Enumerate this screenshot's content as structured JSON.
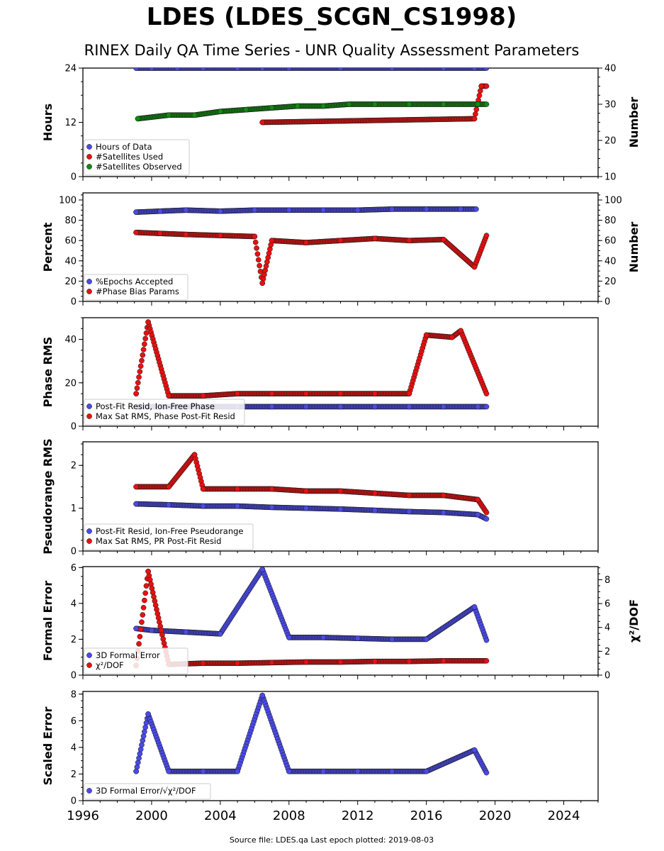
{
  "title": "LDES (LDES_SCGN_CS1998)",
  "subtitle": "RINEX Daily QA Time Series - UNR Quality Assessment Parameters",
  "footer": "Source file: LDES.qa Last epoch plotted: 2019-08-03",
  "colors": {
    "blue": "#4a4ae8",
    "red": "#e81010",
    "green": "#108a10",
    "edge": "#1a1a1a"
  },
  "chart_data": [
    {
      "type": "scatter",
      "x_axis": {
        "range": [
          1996,
          2026
        ],
        "ticks": [
          1996,
          2000,
          2004,
          2008,
          2012,
          2016,
          2020,
          2024
        ]
      },
      "ylabel": "Hours",
      "ylim": [
        0,
        24
      ],
      "yticks": [
        0,
        12,
        24
      ],
      "y2label": "Number",
      "y2lim": [
        10,
        40
      ],
      "y2ticks": [
        10,
        20,
        30,
        40
      ],
      "legend_position": "lower-left",
      "series": [
        {
          "name": "Hours of Data",
          "axis": "left",
          "color": "blue",
          "x": [
            1999.1,
            2000.0,
            2001.5,
            2003.0,
            2005.0,
            2006.45,
            2008.0,
            2011.0,
            2014.0,
            2017.0,
            2018.8,
            2019.5
          ],
          "y": [
            24,
            24,
            24,
            24,
            24,
            24,
            24,
            24,
            24,
            24,
            24,
            24
          ]
        },
        {
          "name": "#Satellites Used",
          "axis": "right",
          "color": "red",
          "x": [
            2006.45,
            2018.8,
            2019.2,
            2019.5
          ],
          "y": [
            25,
            26,
            35,
            35
          ]
        },
        {
          "name": "#Satellites Observed",
          "axis": "right",
          "color": "green",
          "x": [
            1999.2,
            2001.0,
            2002.5,
            2004.0,
            2005.5,
            2007.0,
            2008.5,
            2010.0,
            2011.5,
            2013.0,
            2015.0,
            2017.0,
            2019.0,
            2019.5
          ],
          "y": [
            26,
            27,
            27,
            28,
            28.5,
            29,
            29.5,
            29.5,
            30,
            30,
            30,
            30,
            30,
            30
          ]
        }
      ]
    },
    {
      "type": "scatter",
      "x_axis": {
        "range": [
          1996,
          2026
        ],
        "ticks": [
          1996,
          2000,
          2004,
          2008,
          2012,
          2016,
          2020,
          2024
        ]
      },
      "ylabel": "Percent",
      "ylim": [
        0,
        107
      ],
      "yticks": [
        0,
        20,
        40,
        60,
        80,
        100
      ],
      "y2label": "Number",
      "y2lim": [
        0,
        107
      ],
      "y2ticks": [
        0,
        20,
        40,
        60,
        80,
        100
      ],
      "legend_position": "lower-left",
      "series": [
        {
          "name": "%Epochs Accepted",
          "axis": "left",
          "color": "blue",
          "x": [
            1999.1,
            2000.5,
            2002.0,
            2004.0,
            2006.0,
            2008.0,
            2010.0,
            2012.0,
            2014.0,
            2016.0,
            2018.0,
            2018.9
          ],
          "y": [
            88,
            89,
            90,
            89,
            90,
            90,
            90,
            90,
            91,
            91,
            91,
            91
          ]
        },
        {
          "name": "#Phase Bias Params",
          "axis": "right",
          "color": "red",
          "x": [
            1999.1,
            2000.5,
            2002.0,
            2004.0,
            2006.0,
            2006.45,
            2007.0,
            2009.0,
            2011.0,
            2013.0,
            2015.0,
            2017.0,
            2018.8,
            2019.5
          ],
          "y": [
            68,
            67,
            66,
            65,
            64,
            18,
            60,
            58,
            60,
            62,
            60,
            61,
            34,
            65
          ]
        }
      ]
    },
    {
      "type": "scatter",
      "x_axis": {
        "range": [
          1996,
          2026
        ],
        "ticks": [
          1996,
          2000,
          2004,
          2008,
          2012,
          2016,
          2020,
          2024
        ]
      },
      "ylabel": "Phase RMS",
      "ylim": [
        0,
        50
      ],
      "yticks": [
        0,
        20,
        40
      ],
      "legend_position": "lower-left",
      "series": [
        {
          "name": "Post-Fit Resid, Ion-Free Phase",
          "axis": "left",
          "color": "blue",
          "x": [
            1999.1,
            2001.0,
            2003.0,
            2005.0,
            2007.0,
            2009.0,
            2011.0,
            2013.0,
            2015.0,
            2017.0,
            2019.0,
            2019.5
          ],
          "y": [
            9,
            9,
            9,
            9,
            9,
            9,
            9,
            9,
            9,
            9,
            9,
            9
          ]
        },
        {
          "name": "Max Sat RMS, Phase Post-Fit Resid",
          "axis": "left",
          "color": "red",
          "x": [
            1999.1,
            1999.8,
            2001.0,
            2003.0,
            2005.0,
            2007.0,
            2009.0,
            2011.0,
            2013.0,
            2015.0,
            2016.0,
            2017.5,
            2018.0,
            2019.5
          ],
          "y": [
            15,
            48,
            14,
            14,
            15,
            15,
            15,
            15,
            15,
            15,
            42,
            41,
            44,
            15
          ]
        }
      ]
    },
    {
      "type": "scatter",
      "x_axis": {
        "range": [
          1996,
          2026
        ],
        "ticks": [
          1996,
          2000,
          2004,
          2008,
          2012,
          2016,
          2020,
          2024
        ]
      },
      "ylabel": "Pseudorange RMS",
      "ylim": [
        0,
        2.55
      ],
      "yticks": [
        0,
        1,
        2
      ],
      "legend_position": "lower-left",
      "series": [
        {
          "name": "Post-Fit Resid, Ion-Free Pseudorange",
          "axis": "left",
          "color": "blue",
          "x": [
            1999.1,
            2001.0,
            2003.0,
            2005.0,
            2007.0,
            2009.0,
            2011.0,
            2013.0,
            2015.0,
            2017.0,
            2019.0,
            2019.5
          ],
          "y": [
            1.1,
            1.08,
            1.05,
            1.05,
            1.02,
            1.0,
            0.98,
            0.95,
            0.92,
            0.9,
            0.85,
            0.75
          ]
        },
        {
          "name": "Max Sat RMS, PR Post-Fit Resid",
          "axis": "left",
          "color": "red",
          "x": [
            1999.1,
            2001.0,
            2002.5,
            2003.0,
            2005.0,
            2007.0,
            2009.0,
            2011.0,
            2013.0,
            2015.0,
            2017.0,
            2019.0,
            2019.5
          ],
          "y": [
            1.5,
            1.5,
            2.25,
            1.45,
            1.45,
            1.45,
            1.4,
            1.4,
            1.35,
            1.3,
            1.3,
            1.2,
            0.9
          ]
        }
      ]
    },
    {
      "type": "scatter",
      "x_axis": {
        "range": [
          1996,
          2026
        ],
        "ticks": [
          1996,
          2000,
          2004,
          2008,
          2012,
          2016,
          2020,
          2024
        ]
      },
      "ylabel": "Formal Error",
      "ylim": [
        0,
        6.05
      ],
      "yticks": [
        0,
        2,
        4,
        6
      ],
      "y2label": "χ²/DOF",
      "y2lim": [
        0,
        9.1
      ],
      "y2ticks": [
        0,
        2,
        4,
        6,
        8
      ],
      "legend_position": "lower-left",
      "series": [
        {
          "name": "3D Formal Error",
          "axis": "left",
          "color": "blue",
          "x": [
            1999.1,
            2000.0,
            2002.0,
            2004.0,
            2006.45,
            2008.0,
            2010.0,
            2012.0,
            2014.0,
            2016.0,
            2018.8,
            2019.5
          ],
          "y": [
            2.6,
            2.5,
            2.4,
            2.3,
            5.9,
            2.1,
            2.1,
            2.05,
            2.0,
            2.0,
            3.8,
            1.95
          ]
        },
        {
          "name": "χ²/DOF",
          "axis": "right",
          "color": "red",
          "x": [
            1999.1,
            1999.8,
            2001.0,
            2003.0,
            2005.0,
            2007.0,
            2009.0,
            2011.0,
            2013.0,
            2015.0,
            2017.0,
            2019.5
          ],
          "y": [
            0.8,
            8.7,
            0.9,
            1.0,
            1.0,
            1.05,
            1.1,
            1.1,
            1.15,
            1.15,
            1.2,
            1.2
          ]
        }
      ]
    },
    {
      "type": "scatter",
      "x_axis": {
        "range": [
          1996,
          2026
        ],
        "ticks": [
          1996,
          2000,
          2004,
          2008,
          2012,
          2016,
          2020,
          2024
        ]
      },
      "ylabel": "Scaled Error",
      "ylim": [
        0,
        8.2
      ],
      "yticks": [
        0,
        2,
        4,
        6,
        8
      ],
      "legend_position": "lower-left",
      "series": [
        {
          "name": "3D Formal Error/√χ²/DOF",
          "axis": "left",
          "color": "blue",
          "x": [
            1999.1,
            1999.8,
            2001.0,
            2003.0,
            2005.0,
            2006.45,
            2008.0,
            2010.0,
            2012.0,
            2014.0,
            2016.0,
            2018.8,
            2019.5
          ],
          "y": [
            2.2,
            6.5,
            2.2,
            2.2,
            2.2,
            7.9,
            2.2,
            2.2,
            2.2,
            2.2,
            2.2,
            3.8,
            2.1
          ]
        }
      ]
    }
  ]
}
